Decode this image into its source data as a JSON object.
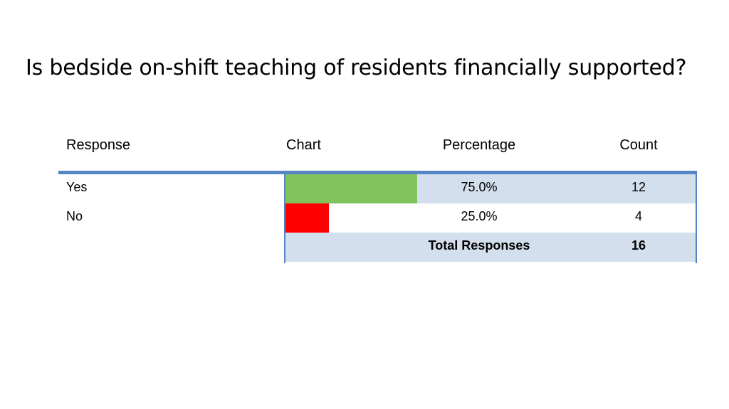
{
  "title": "Is bedside on-shift teaching of residents financially supported?",
  "table": {
    "headers": {
      "response": "Response",
      "chart": "Chart",
      "percentage": "Percentage",
      "count": "Count"
    },
    "rows": [
      {
        "response": "Yes",
        "percentage": "75.0%",
        "count": "12",
        "bar_color": "#82c45c",
        "shaded": true
      },
      {
        "response": "No",
        "percentage": "25.0%",
        "count": "4",
        "bar_color": "#ff0000",
        "shaded": false
      }
    ],
    "total": {
      "label": "Total Responses",
      "count": "16",
      "shaded": true
    }
  },
  "chart_data": {
    "type": "bar",
    "orientation": "horizontal",
    "categories": [
      "Yes",
      "No"
    ],
    "values": [
      75.0,
      25.0
    ],
    "counts": [
      12,
      4
    ],
    "total": 16,
    "unit": "%",
    "xlim": [
      0,
      100
    ],
    "colors": [
      "#82c45c",
      "#ff0000"
    ],
    "grid": false,
    "legend": "none"
  }
}
